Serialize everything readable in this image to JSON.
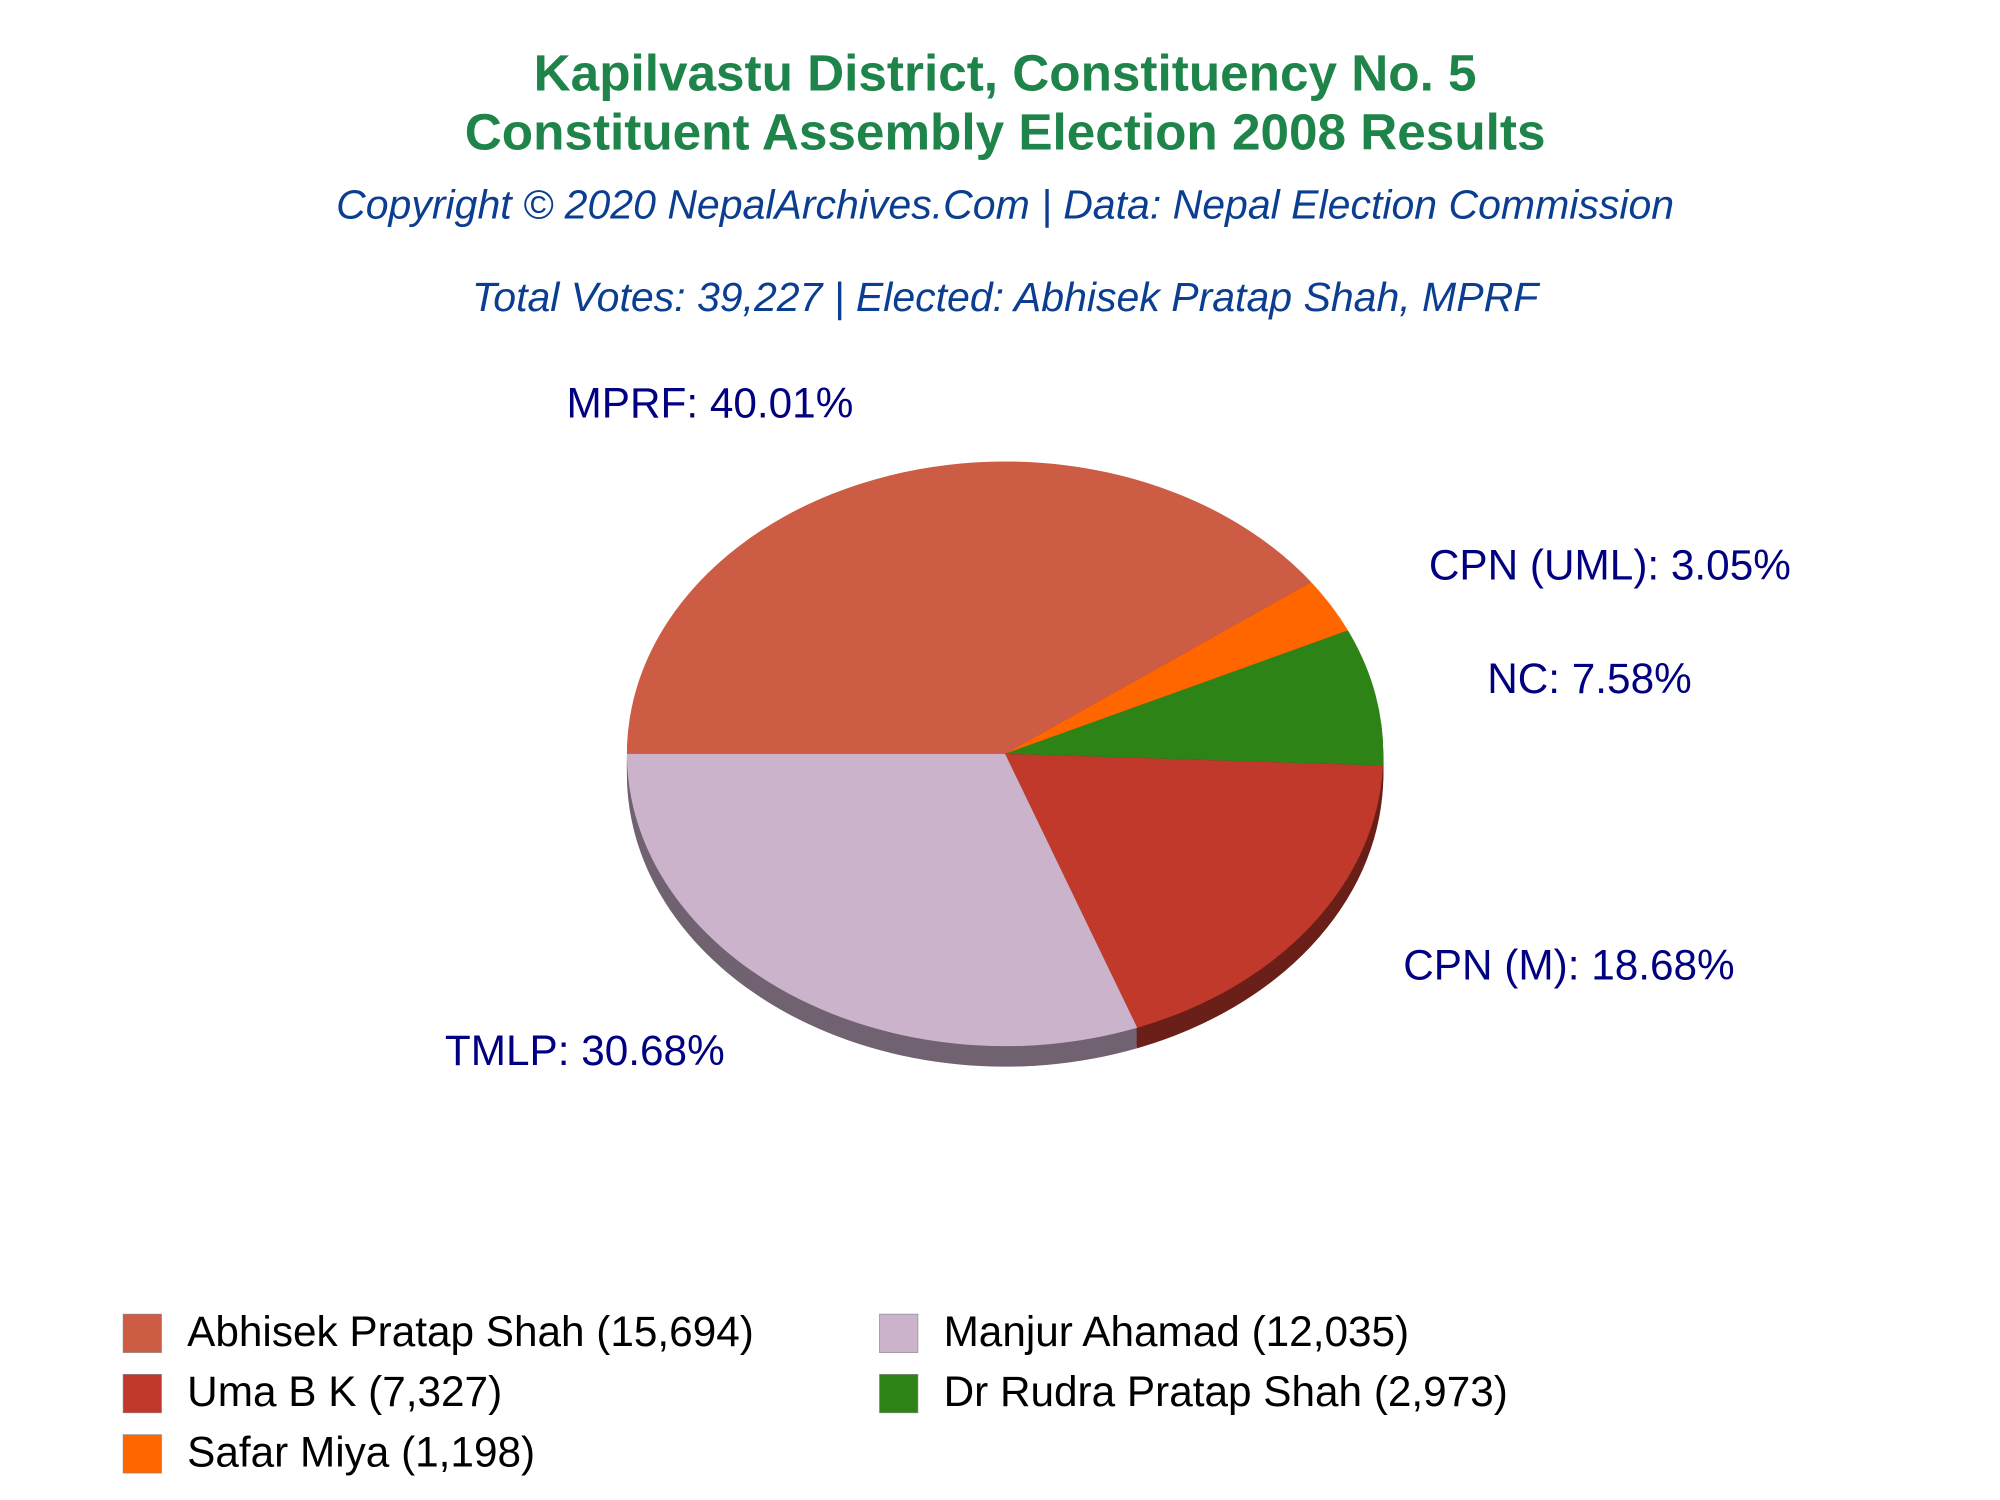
{
  "chart_data": {
    "type": "pie",
    "title": [
      "Kapilvastu District, Constituency No. 5",
      "Constituent Assembly Election 2008 Results"
    ],
    "subtitle": "Copyright © 2020 NepalArchives.Com | Data: Nepal Election Commission",
    "info": "Total Votes: 39,227 | Elected: Abhisek Pratap Shah, MPRF",
    "values": [
      40.01,
      3.05,
      7.58,
      18.68,
      30.68
    ],
    "value_labels": [
      "MPRF: 40.01%",
      "CPN (UML): 3.05%",
      "NC: 7.58%",
      "CPN (M): 18.68%",
      "TMLP: 30.68%"
    ],
    "colors": [
      "#cd5c45",
      "#ff6600",
      "#2e8316",
      "#c0392b",
      "#ccb3cc"
    ],
    "legend": [
      {
        "label": "Abhisek Pratap Shah (15,694)",
        "color": "#cd5c45"
      },
      {
        "label": "Manjur Ahamad (12,035)",
        "color": "#ccb3cc"
      },
      {
        "label": "Uma B K (7,327)",
        "color": "#c0392b"
      },
      {
        "label": "Dr Rudra Pratap Shah (2,973)",
        "color": "#2e8316"
      },
      {
        "label": "Safar Miya (1,198)",
        "color": "#ff6600"
      }
    ]
  }
}
